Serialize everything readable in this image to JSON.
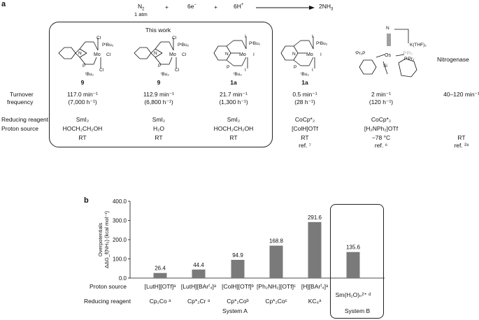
{
  "panel_a": {
    "label": "a",
    "equation": {
      "n2": "N",
      "n2_sub": "2",
      "atm": "1 atm",
      "plus1": "+",
      "electrons": "6e",
      "electrons_sup": "−",
      "plus2": "+",
      "protons": "6H",
      "protons_sup": "+",
      "product": "2NH",
      "product_sub": "3"
    },
    "this_work": "This work",
    "structure_labels": [
      "9",
      "9",
      "1a",
      "1a",
      ""
    ],
    "struct_text": {
      "cl": "Cl",
      "ptbu2": "PᵗBu₂",
      "mo": "Mo",
      "p": "P",
      "tbu2": "ᵗBu₂",
      "n": "N",
      "i": "I",
      "os": "Os",
      "si": "Si",
      "ipr2p": "ⁱPr₂P",
      "pipr2": "PⁱPr₂",
      "kthf": "K(THF)₂",
      "n2top": "N"
    },
    "row_labels": {
      "turnover": "Turnover",
      "frequency": "frequency",
      "reducing": "Reducing reagent",
      "proton": "Proton source"
    },
    "columns": [
      {
        "tof_min": "117.0 min⁻¹",
        "tof_h": "(7,000 h⁻¹)",
        "reductant": "SmI₂",
        "proton": "HOCH₂CH₂OH",
        "temp": "RT",
        "ref": ""
      },
      {
        "tof_min": "112.9 min⁻¹",
        "tof_h": "(6,800 h⁻¹)",
        "reductant": "SmI₂",
        "proton": "H₂O",
        "temp": "RT",
        "ref": ""
      },
      {
        "tof_min": "21.7 min⁻¹",
        "tof_h": "(1,300 h⁻¹)",
        "reductant": "SmI₂",
        "proton": "HOCH₂CH₂OH",
        "temp": "RT",
        "ref": ""
      },
      {
        "tof_min": "0.5 min⁻¹",
        "tof_h": "(28 h⁻¹)",
        "reductant": "CoCp*₂",
        "proton": "[ColH]OTf",
        "temp": "RT",
        "ref": "ref. ⁷"
      },
      {
        "tof_min": "2 min⁻¹",
        "tof_h": "(120 h⁻¹)",
        "reductant": "CoCp*₂",
        "proton": "[H₂NPh₂]OTf",
        "temp": "−78 °C",
        "ref": "ref. ⁶"
      },
      {
        "tof_min": "40–120 min⁻¹",
        "tof_h": "",
        "reductant": "",
        "proton": "",
        "temp": "RT",
        "ref": "ref. ²⁸"
      }
    ],
    "nitrogenase": "Nitrogenase"
  },
  "panel_b": {
    "label": "b",
    "row_labels": {
      "proton": "Proton source",
      "reducing": "Reducing reagent"
    },
    "system_a": "System A",
    "system_b": "System B",
    "proton_sources": [
      "[LutH][OTf]ᵃ",
      "[LutH][BArᶠ₄]ᵃ",
      "[ColH][OTf]ᵇ",
      "[Ph₂NH₂][OTf]ᶜ",
      "[H][BArᶠ₄]ᵃ",
      "Sm(H₂O)ₙ²⁺ ᵈ"
    ],
    "reductants": [
      "Cp₂Co ᵃ",
      "Cp*₂Cr ᵃ",
      "Cp*₂Coᵇ",
      "Cp*₂Coᶜ",
      "KC₈ᵃ",
      ""
    ]
  },
  "chart_data": {
    "type": "bar",
    "categories": [
      "[LutH][OTf] / Cp2Co",
      "[LutH][BArF4] / Cp*2Cr",
      "[ColH][OTf] / Cp*2Co",
      "[Ph2NH2][OTf] / Cp*2Co",
      "[H][BArF4] / KC8",
      "Sm(H2O)n / SmI2"
    ],
    "values": [
      26.4,
      44.4,
      94.9,
      168.8,
      291.6,
      135.6
    ],
    "value_labels": [
      "26.4",
      "44.4",
      "94.9",
      "168.8",
      "291.6",
      "135.6"
    ],
    "ylim": [
      0,
      400
    ],
    "yticks": [
      "0.0",
      "100.0",
      "200.0",
      "300.0",
      "400.0"
    ],
    "ylabel_line1": "Overpotentials",
    "ylabel_line2": "ΔΔG_f(NH₃) (kcal mol⁻¹)",
    "bar_color": "#7a7a7a",
    "grid": false
  }
}
